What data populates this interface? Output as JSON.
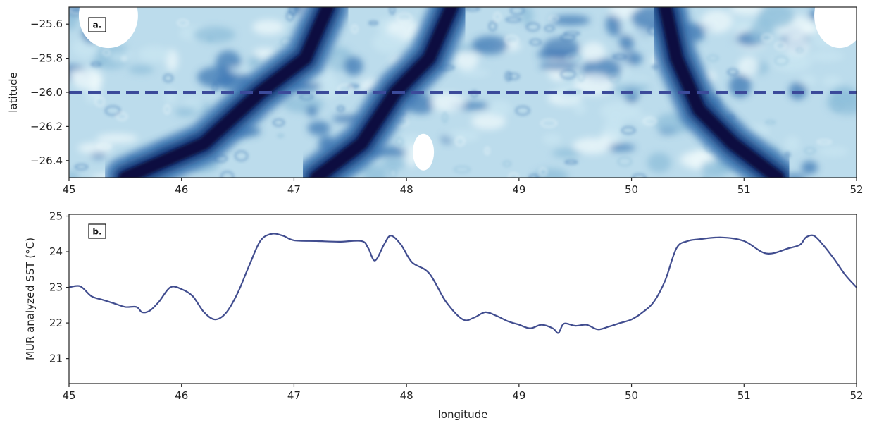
{
  "chart_data": [
    {
      "panel_label": "a.",
      "type": "heatmap",
      "ylabel": "latitude",
      "xlim": [
        45,
        52
      ],
      "ylim": [
        -26.5,
        -25.5
      ],
      "xticks": [
        "45",
        "46",
        "47",
        "48",
        "49",
        "50",
        "51",
        "52"
      ],
      "yticks": [
        "-25.6",
        "-25.8",
        "-26.0",
        "-26.2",
        "-26.4"
      ],
      "transect_latitude": -26.0,
      "transect_style": "dashed",
      "colormap": [
        "#08103f",
        "#163a78",
        "#3f78b4",
        "#8ebed9",
        "#c9e6f2",
        "#eef8fb"
      ],
      "masked_color": "#ffffff",
      "dark_front_bands": [
        {
          "lon": [
            45.5,
            46.2,
            46.7,
            47.1,
            47.3
          ],
          "lat": [
            -26.5,
            -26.3,
            -26.0,
            -25.8,
            -25.5
          ]
        },
        {
          "lon": [
            47.2,
            47.6,
            47.9,
            48.2,
            48.4
          ],
          "lat": [
            -26.5,
            -26.3,
            -26.0,
            -25.8,
            -25.5
          ]
        },
        {
          "lon": [
            50.3,
            50.4,
            50.6,
            50.9,
            51.3
          ],
          "lat": [
            -25.5,
            -25.8,
            -26.1,
            -26.3,
            -26.5
          ]
        }
      ],
      "masked_regions": [
        {
          "lon": 45.35,
          "lat": -25.55
        },
        {
          "lon": 48.15,
          "lat": -26.35
        },
        {
          "lon": 51.85,
          "lat": -25.55
        }
      ]
    },
    {
      "panel_label": "b.",
      "type": "line",
      "xlabel": "longitude",
      "ylabel": "MUR analyzed SST (°C)",
      "xlim": [
        45,
        52
      ],
      "ylim": [
        20.3,
        25.05
      ],
      "xticks": [
        "45",
        "46",
        "47",
        "48",
        "49",
        "50",
        "51",
        "52"
      ],
      "yticks": [
        "21",
        "22",
        "23",
        "24",
        "25"
      ],
      "line_color": "#414d8f",
      "series": [
        {
          "x": [
            45.0,
            45.1,
            45.2,
            45.3,
            45.4,
            45.5,
            45.6,
            45.65,
            45.72,
            45.8,
            45.9,
            46.0,
            46.1,
            46.2,
            46.3,
            46.4,
            46.5,
            46.6,
            46.7,
            46.8,
            46.9,
            47.0,
            47.2,
            47.4,
            47.6,
            47.66,
            47.72,
            47.8,
            47.86,
            47.95,
            48.05,
            48.2,
            48.35,
            48.5,
            48.6,
            48.7,
            48.8,
            48.9,
            49.0,
            49.1,
            49.2,
            49.3,
            49.35,
            49.4,
            49.5,
            49.6,
            49.7,
            49.8,
            49.9,
            50.0,
            50.1,
            50.2,
            50.3,
            50.4,
            50.5,
            50.6,
            50.8,
            51.0,
            51.2,
            51.4,
            51.5,
            51.55,
            51.62,
            51.7,
            51.8,
            51.9,
            52.0
          ],
          "y": [
            23.0,
            23.03,
            22.75,
            22.65,
            22.55,
            22.45,
            22.45,
            22.3,
            22.35,
            22.6,
            23.0,
            22.95,
            22.75,
            22.3,
            22.1,
            22.3,
            22.85,
            23.6,
            24.3,
            24.5,
            24.45,
            24.32,
            24.3,
            24.28,
            24.3,
            24.1,
            23.75,
            24.2,
            24.45,
            24.2,
            23.7,
            23.4,
            22.6,
            22.1,
            22.15,
            22.3,
            22.2,
            22.05,
            21.95,
            21.85,
            21.95,
            21.85,
            21.72,
            21.98,
            21.92,
            21.95,
            21.82,
            21.9,
            22.0,
            22.1,
            22.3,
            22.6,
            23.2,
            24.1,
            24.3,
            24.35,
            24.4,
            24.3,
            23.95,
            24.1,
            24.2,
            24.4,
            24.45,
            24.2,
            23.8,
            23.35,
            23.0
          ]
        }
      ]
    }
  ]
}
